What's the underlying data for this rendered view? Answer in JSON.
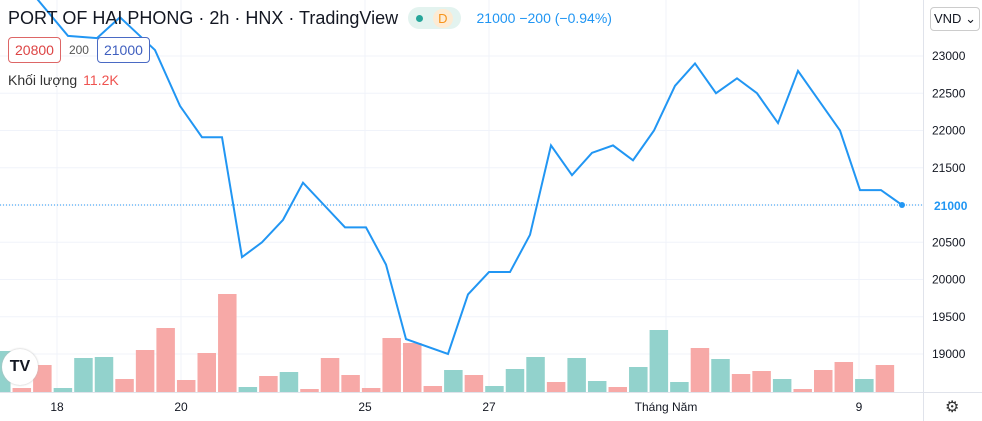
{
  "header": {
    "title": "PORT OF HAI PHONG · 2h · HNX · TradingView",
    "badge_letter": "D",
    "last": "21000 −200 (−0.94%)"
  },
  "quote": {
    "bid": "20800",
    "spread": "200",
    "ask": "21000"
  },
  "volume": {
    "label": "Khối lượng",
    "value": "11.2K"
  },
  "currency": "VND",
  "logo": "TV",
  "icons": {
    "settings": "gear-icon"
  },
  "chart_data": {
    "type": "line",
    "price_scale": {
      "min": 18500,
      "max": 23500,
      "ticks": [
        "23000",
        "22500",
        "22000",
        "21500",
        "21000",
        "20500",
        "20000",
        "19500",
        "19000"
      ],
      "last_label": "21000",
      "last": 21000
    },
    "x_ticks": [
      "18",
      "20",
      "25",
      "27",
      "Tháng Năm",
      "9"
    ],
    "line_color": "#2196f3",
    "prices": [
      23800,
      23270,
      23240,
      23520,
      23080,
      22330,
      21910,
      21910,
      20300,
      20500,
      20800,
      21300,
      21000,
      20700,
      20700,
      20200,
      19200,
      19000,
      19800,
      20100,
      20100,
      20600,
      21800,
      21400,
      21700,
      21800,
      21600,
      22000,
      22600,
      22900,
      22500,
      22700,
      22500,
      22100,
      22800,
      22400,
      22000,
      21200,
      21200,
      21000
    ],
    "volume_bars": [
      {
        "v": 41,
        "up": true
      },
      {
        "v": 4,
        "up": false
      },
      {
        "v": 27,
        "up": false
      },
      {
        "v": 4,
        "up": true
      },
      {
        "v": 34,
        "up": true
      },
      {
        "v": 35,
        "up": true
      },
      {
        "v": 13,
        "up": false
      },
      {
        "v": 42,
        "up": false
      },
      {
        "v": 64,
        "up": false
      },
      {
        "v": 12,
        "up": false
      },
      {
        "v": 39,
        "up": false
      },
      {
        "v": 98,
        "up": false
      },
      {
        "v": 5,
        "up": true
      },
      {
        "v": 16,
        "up": false
      },
      {
        "v": 20,
        "up": true
      },
      {
        "v": 3,
        "up": false
      },
      {
        "v": 34,
        "up": false
      },
      {
        "v": 17,
        "up": false
      },
      {
        "v": 4,
        "up": false
      },
      {
        "v": 54,
        "up": false
      },
      {
        "v": 49,
        "up": false
      },
      {
        "v": 6,
        "up": false
      },
      {
        "v": 22,
        "up": true
      },
      {
        "v": 17,
        "up": false
      },
      {
        "v": 6,
        "up": true
      },
      {
        "v": 23,
        "up": true
      },
      {
        "v": 35,
        "up": true
      },
      {
        "v": 10,
        "up": false
      },
      {
        "v": 34,
        "up": true
      },
      {
        "v": 11,
        "up": true
      },
      {
        "v": 5,
        "up": false
      },
      {
        "v": 25,
        "up": true
      },
      {
        "v": 62,
        "up": true
      },
      {
        "v": 10,
        "up": true
      },
      {
        "v": 44,
        "up": false
      },
      {
        "v": 33,
        "up": true
      },
      {
        "v": 18,
        "up": false
      },
      {
        "v": 21,
        "up": false
      },
      {
        "v": 13,
        "up": true
      },
      {
        "v": 3,
        "up": false
      },
      {
        "v": 22,
        "up": false
      },
      {
        "v": 30,
        "up": false
      },
      {
        "v": 13,
        "up": true
      },
      {
        "v": 27,
        "up": false
      }
    ]
  }
}
